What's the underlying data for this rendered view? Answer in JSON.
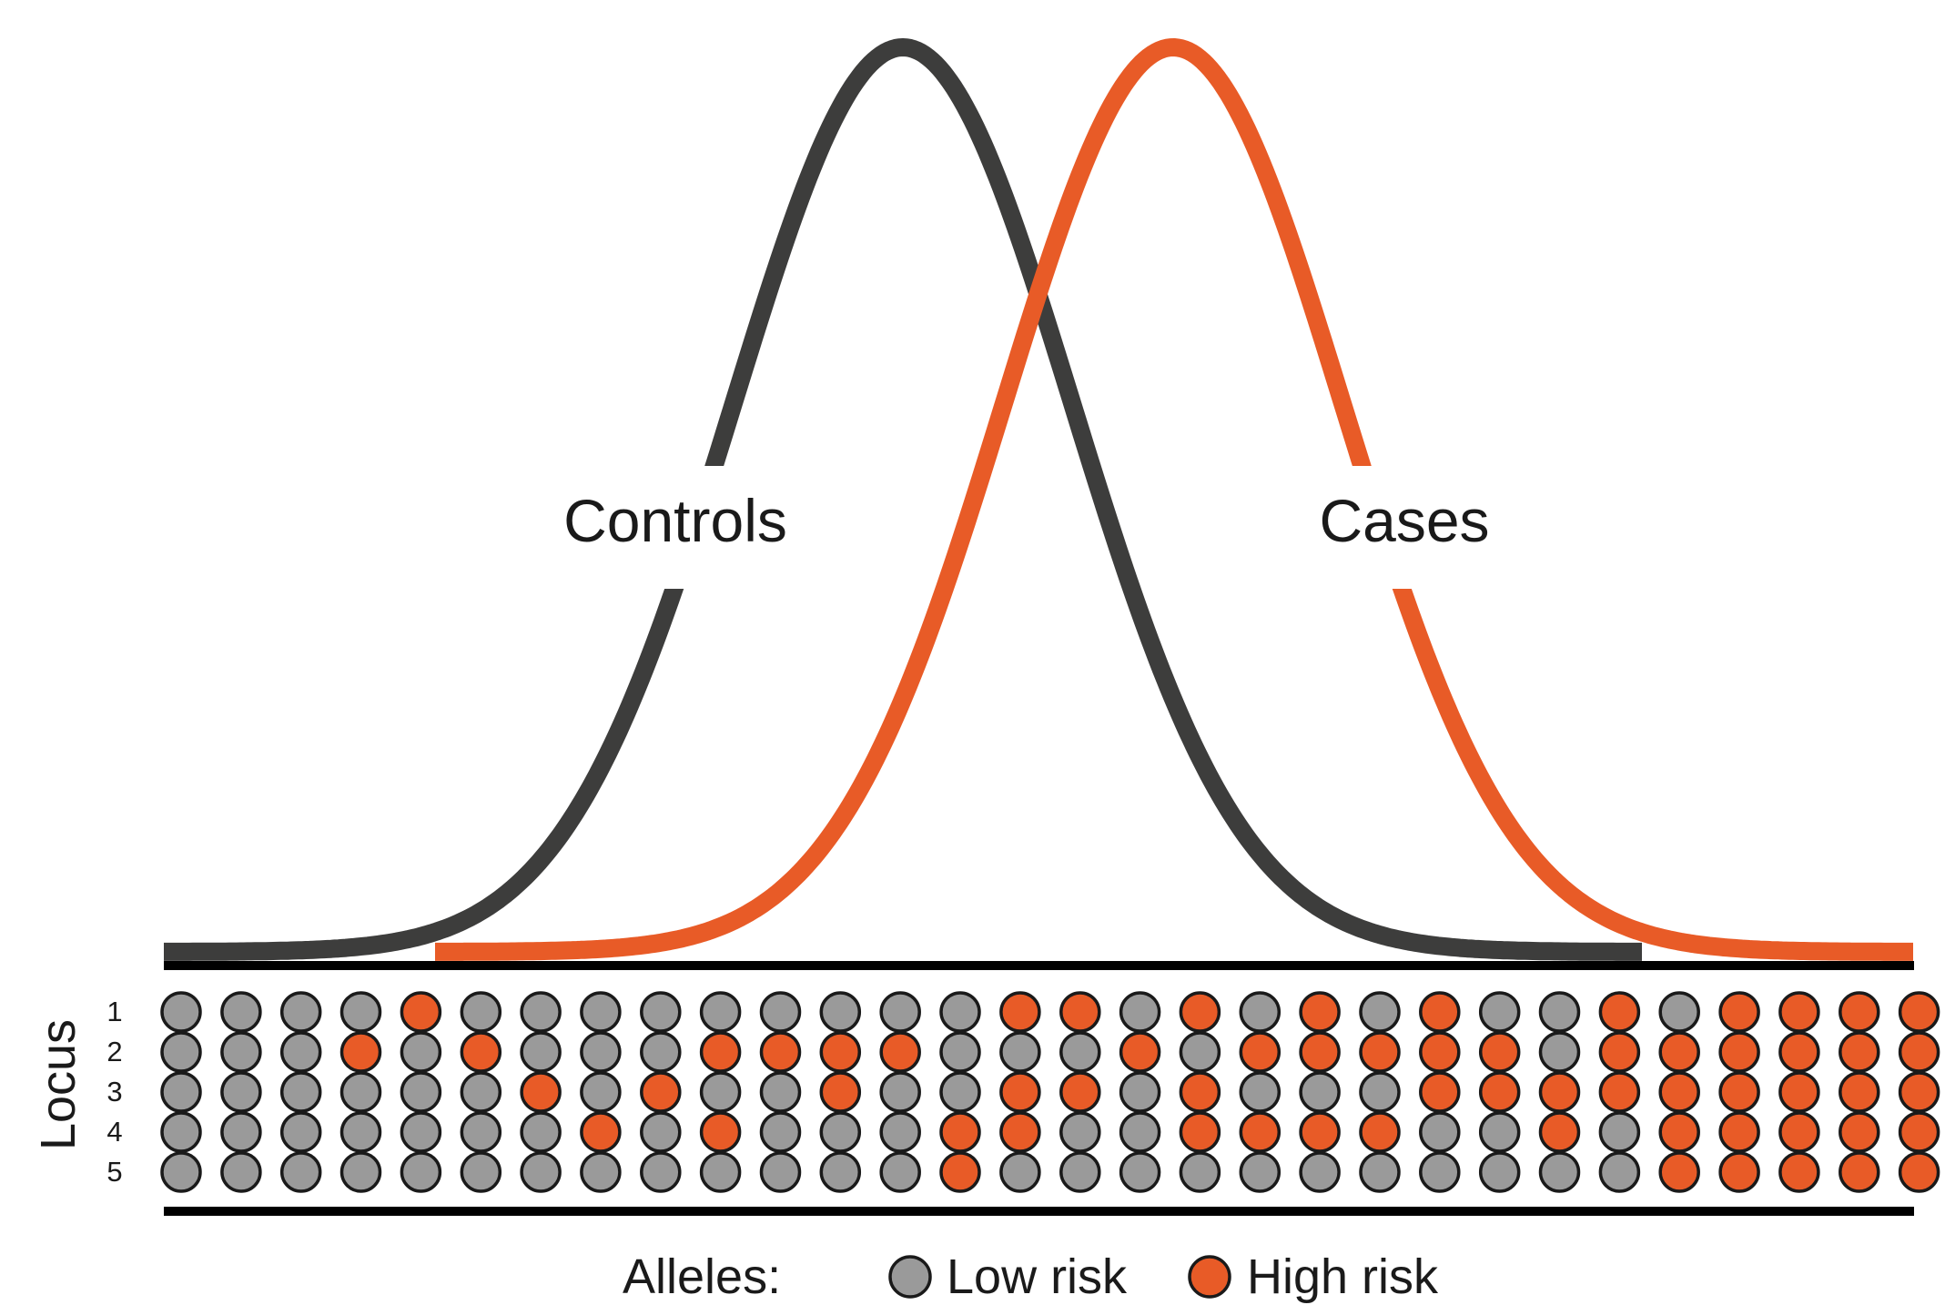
{
  "colors": {
    "controls": "#3d3d3c",
    "cases": "#e85b27",
    "low_risk": "#9a9a9a",
    "high_risk": "#e85b27",
    "outline": "#1a1a1a"
  },
  "curves": {
    "controls_label": "Controls",
    "cases_label": "Cases"
  },
  "genotype_panel": {
    "title": "Locus",
    "locus_labels": [
      "1",
      "2",
      "3",
      "4",
      "5"
    ],
    "genotypes": [
      "0000000000",
      "0000010000",
      "0000000000",
      "0100000000",
      "1000000000",
      "0100000000",
      "0010000000",
      "0001000000",
      "0010000000",
      "0101000000",
      "0100000000",
      "0110000000",
      "0100000000",
      "0001100000",
      "1011000000",
      "1010000000",
      "0100000000",
      "1011000000",
      "0101000000",
      "1101000000",
      "0101000000",
      "1110000000",
      "0110000000",
      "0011000000",
      "1110000000",
      "0111100000",
      "1111100000",
      "1111100000",
      "1111100000",
      "1111100000"
    ],
    "allele_code": {
      "0": "low_risk",
      "1": "high_risk"
    }
  },
  "legend": {
    "title": "Alleles:",
    "items": [
      {
        "label": "Low risk",
        "color": "low_risk"
      },
      {
        "label": "High risk",
        "color": "high_risk"
      }
    ]
  }
}
